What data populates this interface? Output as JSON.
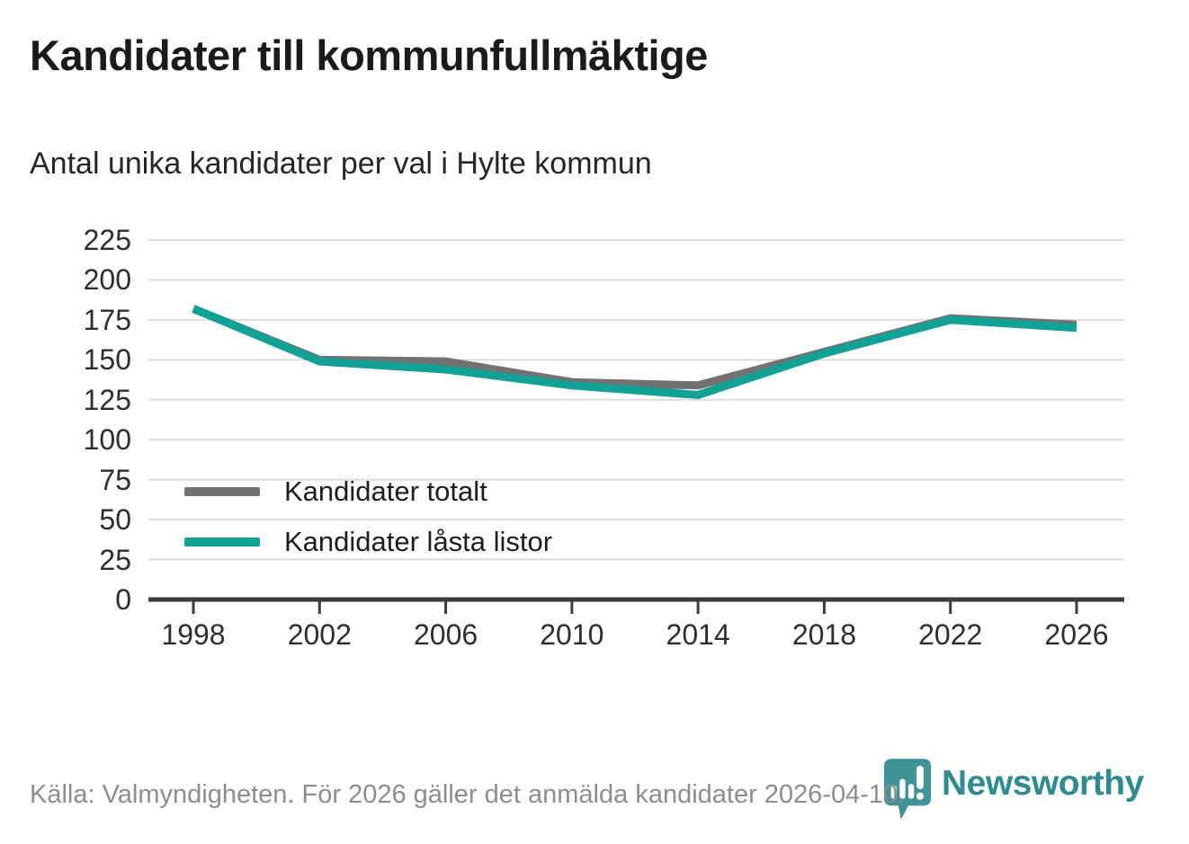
{
  "page": {
    "title": "Kandidater till kommunfullmäktige",
    "subtitle": "Antal unika kandidater per val i Hylte kommun",
    "footer": "Källa: Valmyndigheten. För 2026 gäller det anmälda kandidater 2026-04-10.",
    "brand": "Newsworthy"
  },
  "colors": {
    "total_line": "#727272",
    "locked_line": "#12A195",
    "grid": "#dcdcdc",
    "axis": "#3b3b3b",
    "tick_text": "#2e2e2e",
    "footer_text": "#8d8d8d",
    "brand_teal": "#2e8c90"
  },
  "chart_data": {
    "type": "line",
    "title": "Kandidater till kommunfullmäktige",
    "subtitle": "Antal unika kandidater per val i Hylte kommun",
    "x": [
      1998,
      2002,
      2006,
      2010,
      2014,
      2018,
      2022,
      2026
    ],
    "xticklabels": [
      "1998",
      "2002",
      "2006",
      "2010",
      "2014",
      "2018",
      "2022",
      "2026"
    ],
    "series": [
      {
        "name": "Kandidater totalt",
        "color": "#727272",
        "values": [
          182,
          150,
          149,
          136,
          134,
          155,
          176,
          172
        ]
      },
      {
        "name": "Kandidater låsta listor",
        "color": "#12A195",
        "values": [
          182,
          149,
          144,
          134,
          128,
          154,
          175,
          170
        ]
      }
    ],
    "ylim": [
      0,
      225
    ],
    "yticks": [
      0,
      25,
      50,
      75,
      100,
      125,
      150,
      175,
      200,
      225
    ],
    "xlabel": "",
    "ylabel": "",
    "grid": "horizontal",
    "legend_position": "inside-lower-left"
  }
}
